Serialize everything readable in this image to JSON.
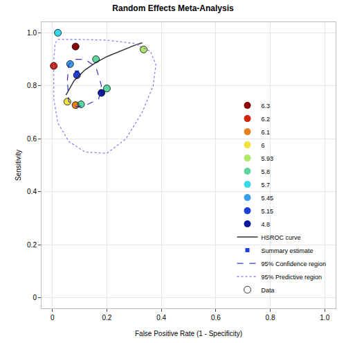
{
  "chart_data": {
    "type": "scatter",
    "title": "Random Effects Meta-Analysis",
    "x_label": "False Positive Rate (1 - Specificity)",
    "y_label": "Sensitivity",
    "xlim": [
      -0.04,
      1.04
    ],
    "ylim": [
      -0.04,
      1.04
    ],
    "xticks": [
      0,
      0.2,
      0.4,
      0.6,
      0.8,
      {
        "value": 1,
        "label": "1.0"
      }
    ],
    "yticks": [
      0,
      0.2,
      0.4,
      0.6,
      0.8,
      {
        "value": 1,
        "label": "1.0"
      }
    ],
    "grid": true,
    "legend": "bottom right",
    "series": [
      {
        "name": "6.3",
        "color": "#8b0000",
        "marker": "circle",
        "x": [
          0.085
        ],
        "y": [
          0.948
        ]
      },
      {
        "name": "6.2",
        "color": "#d0240c",
        "marker": "circle",
        "x": [
          0.005
        ],
        "y": [
          0.875
        ]
      },
      {
        "name": "6.1",
        "color": "#e8801e",
        "marker": "circle",
        "x": [
          0.085
        ],
        "y": [
          0.727
        ]
      },
      {
        "name": "6",
        "color": "#f3e23a",
        "marker": "circle",
        "x": [
          0.055
        ],
        "y": [
          0.74
        ]
      },
      {
        "name": "5.93",
        "color": "#b2e86a",
        "marker": "circle",
        "x": [
          0.335
        ],
        "y": [
          0.937
        ]
      },
      {
        "name": "5.8",
        "color": "#5fd6a0",
        "marker": "circle",
        "x": [
          0.16,
          0.2,
          0.105
        ],
        "y": [
          0.9,
          0.79,
          0.73
        ]
      },
      {
        "name": "5.7",
        "color": "#36d8ea",
        "marker": "circle",
        "x": [
          0.02
        ],
        "y": [
          1.0
        ]
      },
      {
        "name": "5.45",
        "color": "#3a9ee8",
        "marker": "circle",
        "x": [
          0.065
        ],
        "y": [
          0.882
        ]
      },
      {
        "name": "5.15",
        "color": "#1f3fd6",
        "marker": "circle",
        "x": [
          0.09
        ],
        "y": [
          0.84
        ]
      },
      {
        "name": "4.8",
        "color": "#0a1a9e",
        "marker": "circle",
        "x": [
          0.18
        ],
        "y": [
          0.773
        ]
      },
      {
        "name": "HSROC curve",
        "color": "#333333",
        "line_style": "solid",
        "x": [
          0.05,
          0.08,
          0.12,
          0.16,
          0.2,
          0.25,
          0.3,
          0.33
        ],
        "y": [
          0.765,
          0.82,
          0.86,
          0.888,
          0.91,
          0.932,
          0.952,
          0.962
        ]
      },
      {
        "name": "Summary estimate",
        "color": "#1f3fd6",
        "marker": "square",
        "x": [
          0.09
        ],
        "y": [
          0.85
        ]
      },
      {
        "name": "95% Confidence region",
        "color": "#3333cc",
        "line_style": "dashed",
        "x": [
          0.055,
          0.06,
          0.08,
          0.12,
          0.16,
          0.18,
          0.17,
          0.13,
          0.09,
          0.06,
          0.055
        ],
        "y": [
          0.82,
          0.88,
          0.9,
          0.9,
          0.87,
          0.8,
          0.75,
          0.73,
          0.72,
          0.74,
          0.82
        ]
      },
      {
        "name": "95% Predictive region",
        "color": "#7777ee",
        "line_style": "dotted",
        "x": [
          0.02,
          0.1,
          0.2,
          0.3,
          0.36,
          0.38,
          0.37,
          0.33,
          0.27,
          0.2,
          0.12,
          0.06,
          0.02,
          0.005,
          0.005,
          0.01,
          0.02
        ],
        "y": [
          0.975,
          0.975,
          0.972,
          0.96,
          0.93,
          0.88,
          0.8,
          0.7,
          0.6,
          0.545,
          0.55,
          0.59,
          0.66,
          0.75,
          0.9,
          0.96,
          0.975
        ]
      },
      {
        "name": "Data",
        "color": "#000000",
        "marker": "circle-open"
      }
    ]
  }
}
